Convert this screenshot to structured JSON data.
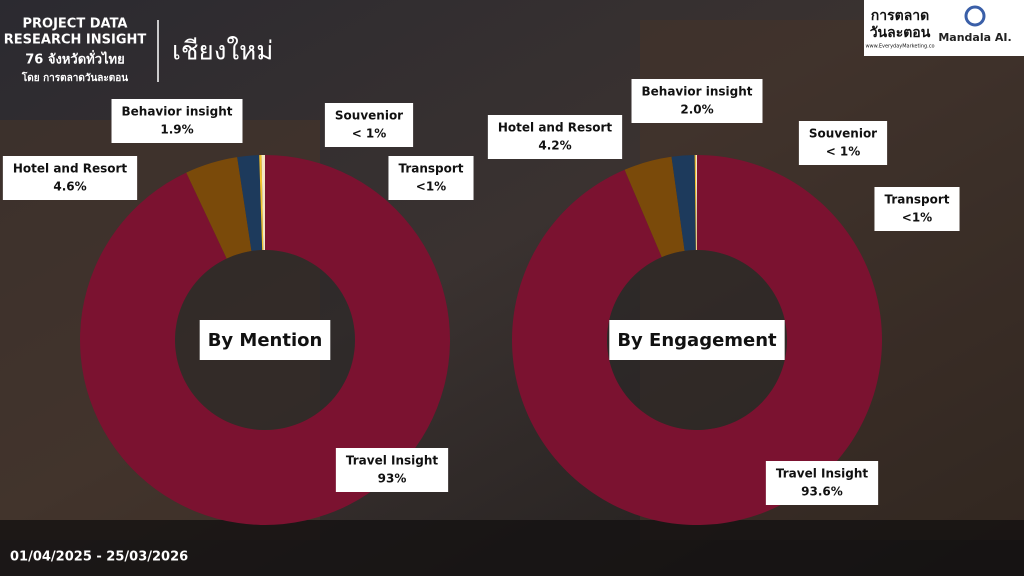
{
  "header": {
    "project": "PROJECT DATA",
    "research": "RESEARCH INSIGHT",
    "provinces": "76 จังหวัดทั่วไทย",
    "by": "โดย การตลาดวันละตอน",
    "province": "เชียงใหม่",
    "logo_main": "การตลาด",
    "logo_sub": "วันละตอน",
    "logo_url": "www.EverydayMarketing.co",
    "partner": "Mandala AI."
  },
  "date_range": "01/04/2025 - 25/03/2026",
  "chart_data": [
    {
      "type": "donut",
      "title": "By Mention",
      "categories": [
        "Travel Insight",
        "Hotel and Resort",
        "Behavior insight",
        "Transport",
        "Souvenior"
      ],
      "values": [
        93,
        4.6,
        1.9,
        0.2,
        0.3
      ],
      "value_labels": [
        "93%",
        "4.6%",
        "1.9%",
        "<1%",
        "< 1%"
      ],
      "colors": [
        "#7b1230",
        "#7a4a0a",
        "#1d3a5c",
        "#f2c12e",
        "#f3e6c4"
      ]
    },
    {
      "type": "donut",
      "title": "By Engagement",
      "categories": [
        "Travel Insight",
        "Hotel and Resort",
        "Behavior insight",
        "Transport",
        "Souvenior"
      ],
      "values": [
        93.6,
        4.2,
        2.0,
        0.1,
        0.1
      ],
      "value_labels": [
        "93.6%",
        "4.2%",
        "2.0%",
        "<1%",
        "< 1%"
      ],
      "colors": [
        "#7b1230",
        "#7a4a0a",
        "#1d3a5c",
        "#f2c12e",
        "#f3e6c4"
      ]
    }
  ]
}
